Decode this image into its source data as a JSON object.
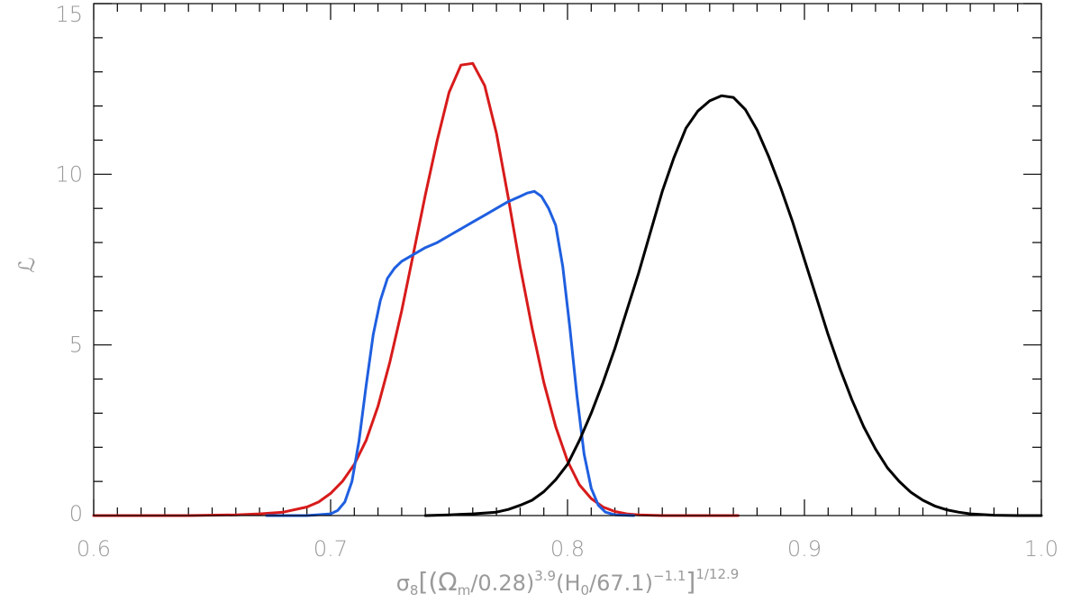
{
  "chart_data": {
    "type": "line",
    "title": "",
    "xlabel": "σ8[(Ωm/0.28)^3.9(H0/67.1)^-1.1]^1/12.9",
    "xlabel_parts": {
      "sym": "σ",
      "sub8": "8",
      "b1": "[(Ω",
      "subm": "m",
      "mid1": "/0.28)",
      "sup1": "3.9",
      "mid2": "(H",
      "sub0": "0",
      "mid3": "/67.1)",
      "sup2": "−1.1",
      "close": "]",
      "sup3": "1/12.9"
    },
    "ylabel": "ℒ",
    "xlim": [
      0.6,
      1.0
    ],
    "ylim": [
      0,
      15
    ],
    "xticks": [
      {
        "v": 0.6,
        "label": "0.6"
      },
      {
        "v": 0.7,
        "label": "0.7"
      },
      {
        "v": 0.8,
        "label": "0.8"
      },
      {
        "v": 0.9,
        "label": "0.9"
      },
      {
        "v": 1.0,
        "label": "1.0"
      }
    ],
    "yticks": [
      {
        "v": 0,
        "label": "0"
      },
      {
        "v": 5,
        "label": "5"
      },
      {
        "v": 10,
        "label": "10"
      },
      {
        "v": 15,
        "label": "15"
      }
    ],
    "x_minor_step": 0.01,
    "y_minor_step": 1,
    "grid": false,
    "series": [
      {
        "color": "#d81b1b",
        "x": [
          0.6,
          0.62,
          0.64,
          0.66,
          0.67,
          0.68,
          0.69,
          0.695,
          0.7,
          0.705,
          0.71,
          0.715,
          0.72,
          0.725,
          0.73,
          0.735,
          0.74,
          0.745,
          0.75,
          0.755,
          0.76,
          0.765,
          0.77,
          0.775,
          0.78,
          0.785,
          0.79,
          0.795,
          0.8,
          0.805,
          0.81,
          0.815,
          0.82,
          0.825,
          0.83,
          0.84,
          0.85,
          0.86,
          0.872
        ],
        "y": [
          0,
          0,
          0,
          0.02,
          0.05,
          0.1,
          0.25,
          0.4,
          0.65,
          1.0,
          1.5,
          2.2,
          3.2,
          4.5,
          6.0,
          7.7,
          9.4,
          11.0,
          12.4,
          13.2,
          13.25,
          12.6,
          11.2,
          9.3,
          7.3,
          5.5,
          3.9,
          2.6,
          1.6,
          0.9,
          0.5,
          0.25,
          0.12,
          0.05,
          0.02,
          0,
          0,
          0,
          0
        ]
      },
      {
        "color": "#1f5fe0",
        "x": [
          0.673,
          0.69,
          0.7,
          0.703,
          0.706,
          0.709,
          0.712,
          0.715,
          0.718,
          0.721,
          0.724,
          0.727,
          0.73,
          0.735,
          0.74,
          0.745,
          0.75,
          0.755,
          0.76,
          0.765,
          0.77,
          0.775,
          0.78,
          0.783,
          0.786,
          0.789,
          0.792,
          0.795,
          0.798,
          0.801,
          0.804,
          0.807,
          0.81,
          0.813,
          0.816,
          0.82,
          0.828
        ],
        "y": [
          0,
          0,
          0.05,
          0.15,
          0.4,
          1.0,
          2.2,
          3.8,
          5.3,
          6.3,
          6.95,
          7.25,
          7.45,
          7.65,
          7.85,
          8.0,
          8.2,
          8.4,
          8.6,
          8.8,
          9.0,
          9.2,
          9.35,
          9.45,
          9.5,
          9.35,
          9.0,
          8.5,
          7.3,
          5.5,
          3.5,
          1.8,
          0.8,
          0.3,
          0.1,
          0.02,
          0
        ]
      },
      {
        "color": "#000000",
        "x": [
          0.74,
          0.75,
          0.76,
          0.77,
          0.775,
          0.78,
          0.785,
          0.79,
          0.795,
          0.8,
          0.805,
          0.81,
          0.815,
          0.82,
          0.825,
          0.83,
          0.835,
          0.84,
          0.845,
          0.85,
          0.855,
          0.86,
          0.865,
          0.87,
          0.875,
          0.88,
          0.885,
          0.89,
          0.895,
          0.9,
          0.905,
          0.91,
          0.915,
          0.92,
          0.925,
          0.93,
          0.935,
          0.94,
          0.945,
          0.95,
          0.955,
          0.96,
          0.965,
          0.97,
          0.975,
          0.98,
          0.99,
          1.0
        ],
        "y": [
          0,
          0.02,
          0.05,
          0.1,
          0.18,
          0.3,
          0.45,
          0.7,
          1.05,
          1.5,
          2.2,
          3.0,
          3.9,
          4.9,
          6.0,
          7.1,
          8.3,
          9.5,
          10.5,
          11.35,
          11.85,
          12.15,
          12.3,
          12.25,
          11.9,
          11.3,
          10.5,
          9.6,
          8.6,
          7.5,
          6.4,
          5.3,
          4.3,
          3.4,
          2.6,
          1.95,
          1.4,
          1.0,
          0.68,
          0.45,
          0.28,
          0.17,
          0.1,
          0.05,
          0.03,
          0.01,
          0,
          0
        ]
      }
    ]
  }
}
